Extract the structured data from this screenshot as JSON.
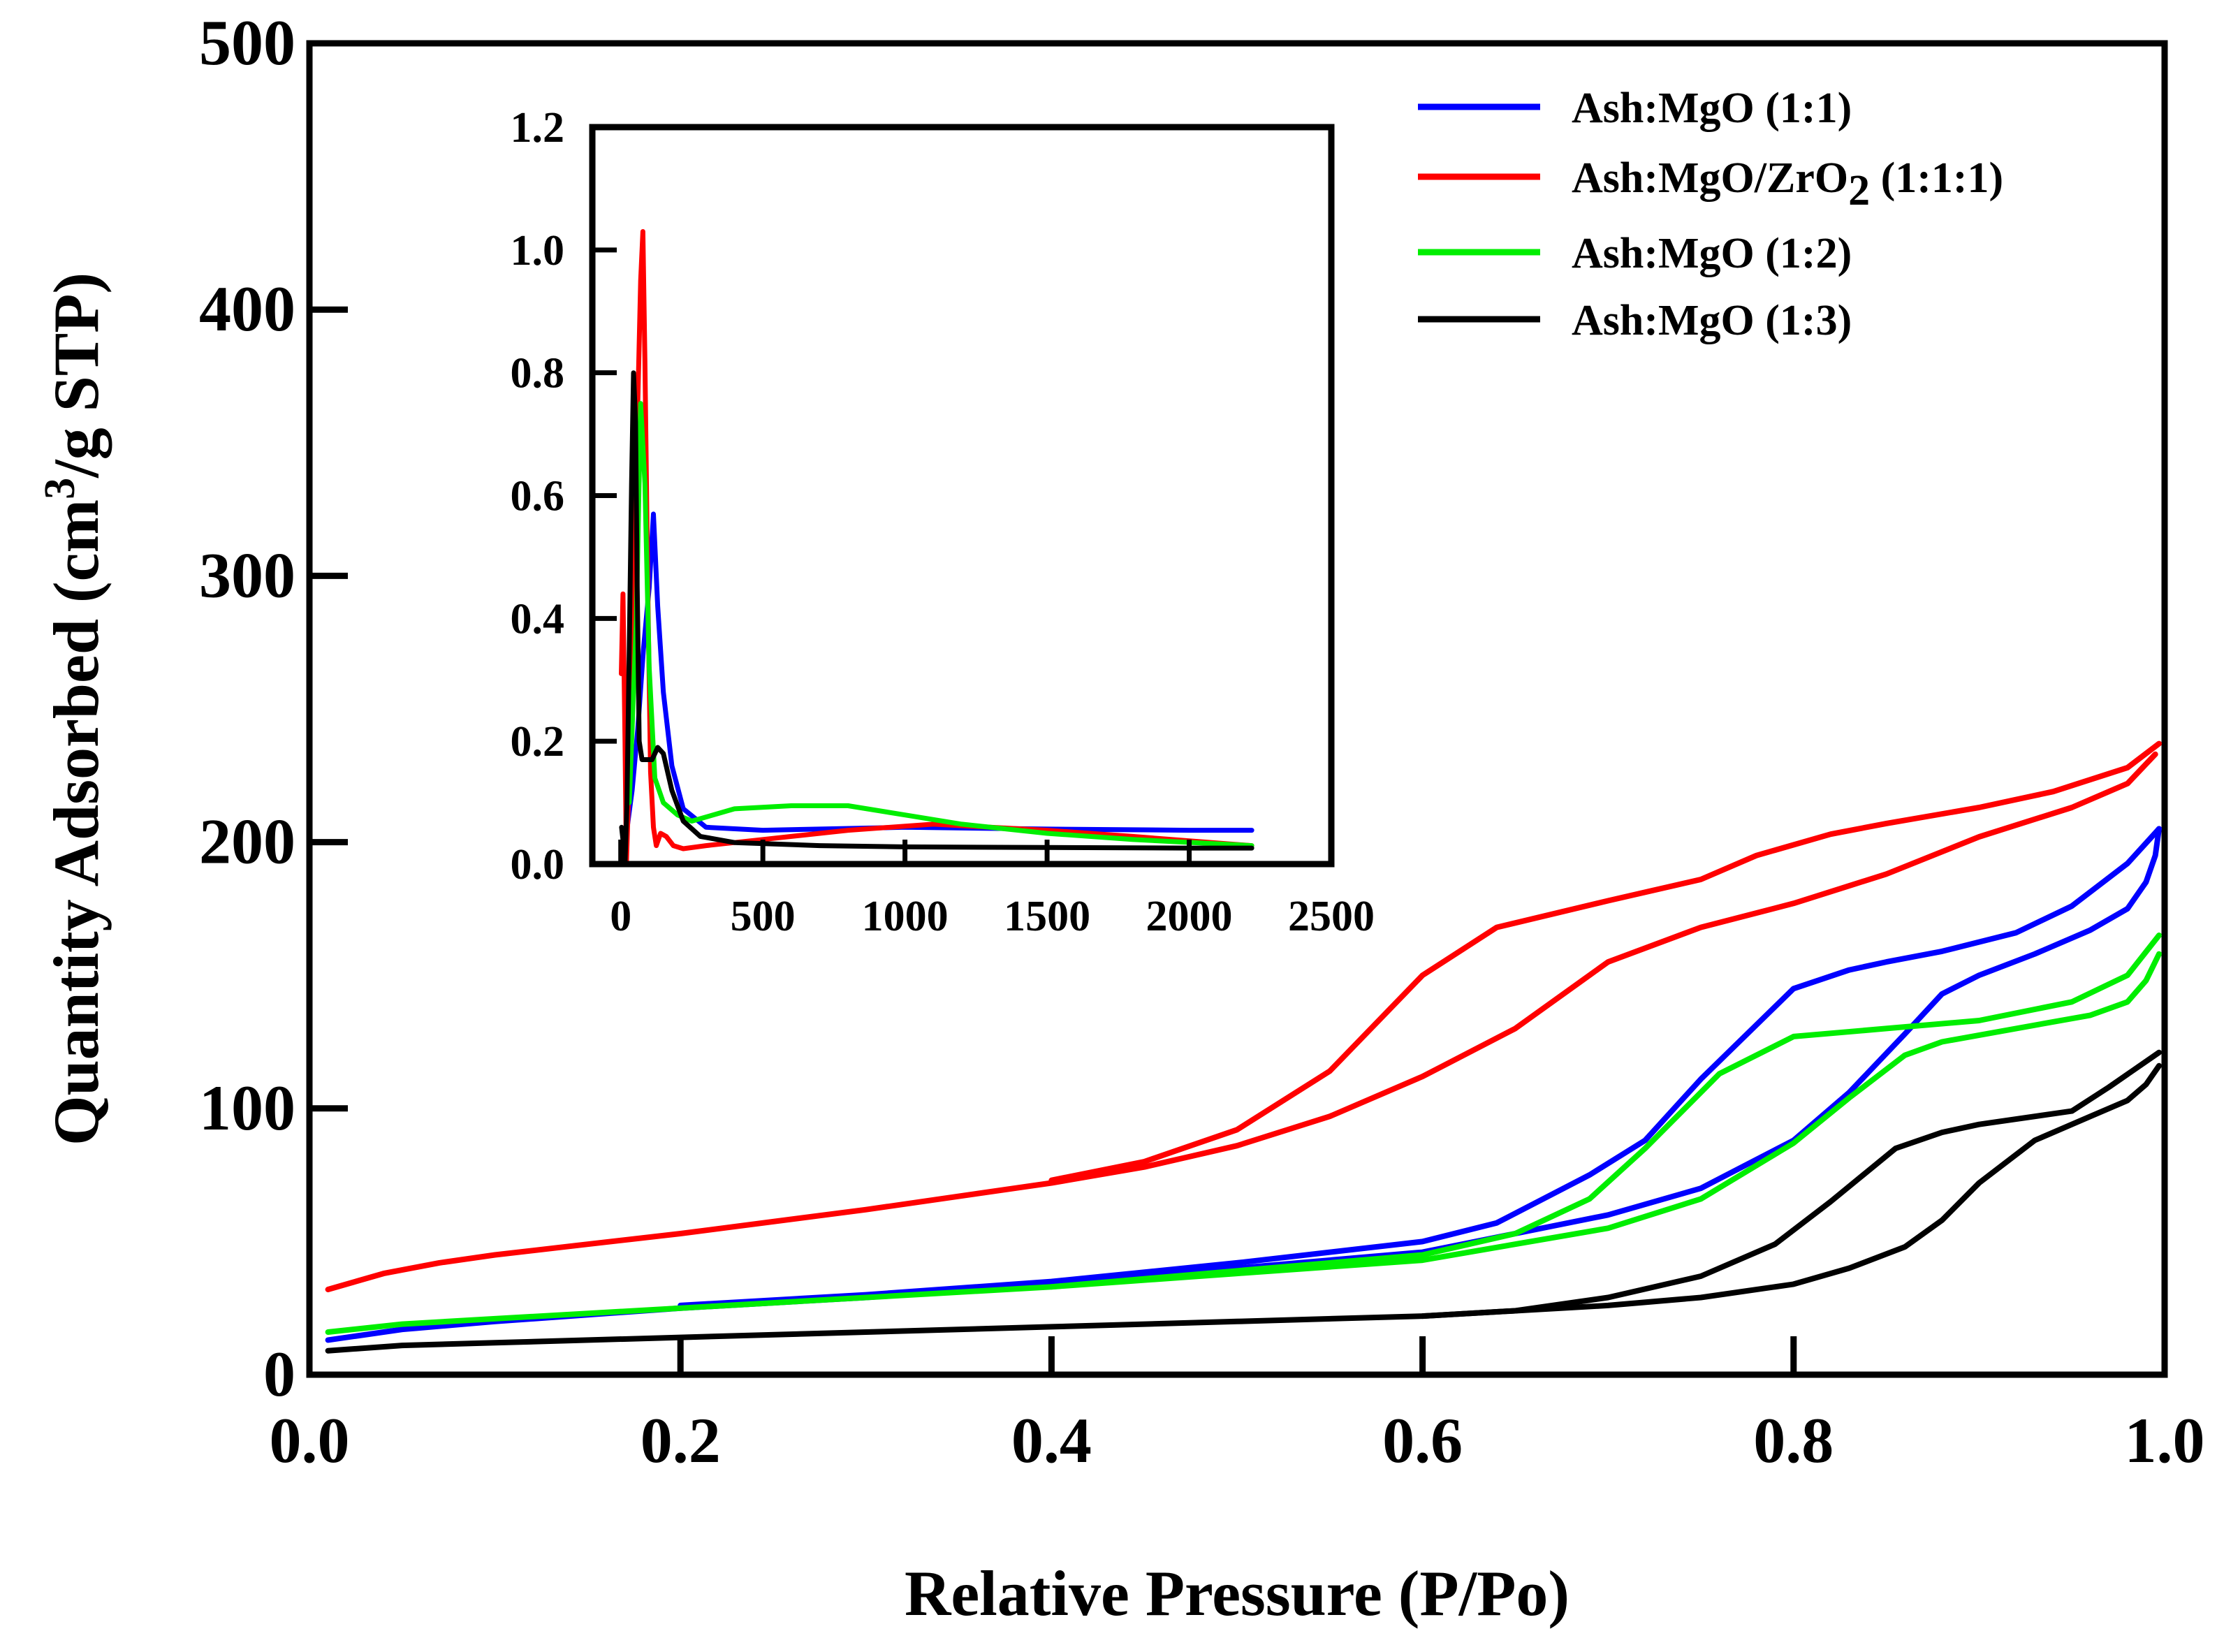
{
  "chart_data": [
    {
      "id": "main",
      "type": "line",
      "xlabel": "Relative Pressure (P/Po)",
      "ylabel": "Quantity Adsorbed (cm3/g STP)",
      "ylabel_parts": {
        "pre": "Quantity Adsorbed (cm",
        "sup": "3",
        "post": "/g STP)"
      },
      "xlim": [
        0,
        1.0
      ],
      "ylim": [
        0,
        500
      ],
      "xticks": [
        "0.0",
        "0.2",
        "0.4",
        "0.6",
        "0.8",
        "1.0"
      ],
      "xtick_values": [
        0,
        0.2,
        0.4,
        0.6,
        0.8,
        1.0
      ],
      "yticks": [
        "0",
        "100",
        "200",
        "300",
        "400",
        "500"
      ],
      "ytick_values": [
        0,
        100,
        200,
        300,
        400,
        500
      ],
      "legend_position": "top-right",
      "series": [
        {
          "name": "Ash:MgO (1:1)",
          "color": "#0000FF",
          "adsorption": [
            [
              0.01,
              13
            ],
            [
              0.05,
              17
            ],
            [
              0.1,
              20
            ],
            [
              0.2,
              25
            ],
            [
              0.3,
              29
            ],
            [
              0.4,
              34
            ],
            [
              0.5,
              40
            ],
            [
              0.6,
              46
            ],
            [
              0.7,
              60
            ],
            [
              0.75,
              70
            ],
            [
              0.8,
              88
            ],
            [
              0.83,
              106
            ],
            [
              0.86,
              128
            ],
            [
              0.88,
              143
            ],
            [
              0.9,
              150
            ],
            [
              0.93,
              158
            ],
            [
              0.96,
              167
            ],
            [
              0.98,
              175
            ],
            [
              0.99,
              185
            ],
            [
              0.995,
              195
            ],
            [
              0.997,
              205
            ]
          ],
          "desorption": [
            [
              0.997,
              205
            ],
            [
              0.98,
              192
            ],
            [
              0.95,
              176
            ],
            [
              0.92,
              166
            ],
            [
              0.88,
              159
            ],
            [
              0.85,
              155
            ],
            [
              0.83,
              152
            ],
            [
              0.8,
              145
            ],
            [
              0.75,
              111
            ],
            [
              0.72,
              88
            ],
            [
              0.69,
              75
            ],
            [
              0.64,
              57
            ],
            [
              0.6,
              50
            ],
            [
              0.5,
              42
            ],
            [
              0.4,
              35
            ],
            [
              0.3,
              30
            ],
            [
              0.2,
              26
            ]
          ]
        },
        {
          "name": "Ash:MgO/ZrO2 (1:1:1)",
          "label_parts": {
            "pre": "Ash:MgO/ZrO",
            "sub": "2",
            "post": " (1:1:1)"
          },
          "color": "#FF0000",
          "adsorption": [
            [
              0.01,
              32
            ],
            [
              0.04,
              38
            ],
            [
              0.07,
              42
            ],
            [
              0.1,
              45
            ],
            [
              0.15,
              49
            ],
            [
              0.2,
              53
            ],
            [
              0.3,
              62
            ],
            [
              0.4,
              72
            ],
            [
              0.45,
              78
            ],
            [
              0.5,
              86
            ],
            [
              0.55,
              97
            ],
            [
              0.6,
              112
            ],
            [
              0.65,
              130
            ],
            [
              0.7,
              155
            ],
            [
              0.75,
              168
            ],
            [
              0.8,
              177
            ],
            [
              0.85,
              188
            ],
            [
              0.9,
              202
            ],
            [
              0.95,
              213
            ],
            [
              0.98,
              222
            ],
            [
              0.995,
              233
            ]
          ],
          "desorption": [
            [
              0.997,
              237
            ],
            [
              0.98,
              228
            ],
            [
              0.94,
              219
            ],
            [
              0.9,
              213
            ],
            [
              0.85,
              207
            ],
            [
              0.82,
              203
            ],
            [
              0.78,
              195
            ],
            [
              0.75,
              186
            ],
            [
              0.7,
              178
            ],
            [
              0.64,
              168
            ],
            [
              0.6,
              150
            ],
            [
              0.55,
              114
            ],
            [
              0.5,
              92
            ],
            [
              0.45,
              80
            ],
            [
              0.4,
              73
            ]
          ]
        },
        {
          "name": "Ash:MgO (1:2)",
          "color": "#00EE00",
          "adsorption": [
            [
              0.01,
              16
            ],
            [
              0.05,
              19
            ],
            [
              0.1,
              21
            ],
            [
              0.2,
              25
            ],
            [
              0.3,
              29
            ],
            [
              0.4,
              33
            ],
            [
              0.5,
              38
            ],
            [
              0.6,
              43
            ],
            [
              0.7,
              55
            ],
            [
              0.75,
              66
            ],
            [
              0.8,
              87
            ],
            [
              0.83,
              104
            ],
            [
              0.86,
              120
            ],
            [
              0.88,
              125
            ],
            [
              0.92,
              130
            ],
            [
              0.96,
              135
            ],
            [
              0.98,
              140
            ],
            [
              0.99,
              148
            ],
            [
              0.997,
              158
            ]
          ],
          "desorption": [
            [
              0.997,
              165
            ],
            [
              0.98,
              150
            ],
            [
              0.95,
              140
            ],
            [
              0.9,
              133
            ],
            [
              0.85,
              130
            ],
            [
              0.8,
              127
            ],
            [
              0.76,
              113
            ],
            [
              0.72,
              85
            ],
            [
              0.69,
              66
            ],
            [
              0.65,
              53
            ],
            [
              0.6,
              45
            ],
            [
              0.5,
              39
            ],
            [
              0.4,
              33
            ]
          ]
        },
        {
          "name": "Ash:MgO (1:3)",
          "color": "#000000",
          "adsorption": [
            [
              0.01,
              9
            ],
            [
              0.05,
              11
            ],
            [
              0.1,
              12
            ],
            [
              0.2,
              14
            ],
            [
              0.3,
              16
            ],
            [
              0.4,
              18
            ],
            [
              0.5,
              20
            ],
            [
              0.6,
              22
            ],
            [
              0.7,
              26
            ],
            [
              0.75,
              29
            ],
            [
              0.8,
              34
            ],
            [
              0.83,
              40
            ],
            [
              0.86,
              48
            ],
            [
              0.88,
              58
            ],
            [
              0.9,
              72
            ],
            [
              0.93,
              88
            ],
            [
              0.96,
              97
            ],
            [
              0.98,
              103
            ],
            [
              0.99,
              109
            ],
            [
              0.997,
              116
            ]
          ],
          "desorption": [
            [
              0.997,
              121
            ],
            [
              0.97,
              108
            ],
            [
              0.95,
              99
            ],
            [
              0.9,
              94
            ],
            [
              0.88,
              91
            ],
            [
              0.855,
              85
            ],
            [
              0.82,
              65
            ],
            [
              0.79,
              49
            ],
            [
              0.75,
              37
            ],
            [
              0.7,
              29
            ],
            [
              0.65,
              24
            ],
            [
              0.6,
              22
            ]
          ]
        }
      ]
    },
    {
      "id": "inset",
      "type": "line",
      "xlim": [
        -100,
        2500
      ],
      "ylim": [
        0,
        1.2
      ],
      "xticks": [
        "0",
        "500",
        "1000",
        "1500",
        "2000",
        "2500"
      ],
      "xtick_values": [
        0,
        500,
        1000,
        1500,
        2000,
        2500
      ],
      "yticks": [
        "0.0",
        "0.2",
        "0.4",
        "0.6",
        "0.8",
        "1.0",
        "1.2"
      ],
      "ytick_values": [
        0,
        0.2,
        0.4,
        0.6,
        0.8,
        1.0,
        1.2
      ],
      "series": [
        {
          "name": "Ash:MgO (1:1)",
          "color": "#0000FF",
          "points": [
            [
              20,
              0.05
            ],
            [
              40,
              0.12
            ],
            [
              60,
              0.22
            ],
            [
              80,
              0.35
            ],
            [
              100,
              0.45
            ],
            [
              115,
              0.57
            ],
            [
              130,
              0.42
            ],
            [
              150,
              0.28
            ],
            [
              180,
              0.16
            ],
            [
              220,
              0.09
            ],
            [
              300,
              0.06
            ],
            [
              500,
              0.055
            ],
            [
              1000,
              0.06
            ],
            [
              1500,
              0.057
            ],
            [
              2000,
              0.055
            ],
            [
              2220,
              0.055
            ]
          ]
        },
        {
          "name": "Ash:MgO/ZrO2 (1:1:1)",
          "color": "#FF0000",
          "points": [
            [
              2,
              0.31
            ],
            [
              8,
              0.44
            ],
            [
              15,
              0.2
            ],
            [
              20,
              0.0
            ],
            [
              30,
              0.15
            ],
            [
              45,
              0.4
            ],
            [
              60,
              0.75
            ],
            [
              70,
              0.95
            ],
            [
              78,
              1.03
            ],
            [
              85,
              0.82
            ],
            [
              95,
              0.45
            ],
            [
              105,
              0.15
            ],
            [
              115,
              0.06
            ],
            [
              125,
              0.03
            ],
            [
              140,
              0.05
            ],
            [
              160,
              0.045
            ],
            [
              185,
              0.03
            ],
            [
              220,
              0.025
            ],
            [
              300,
              0.03
            ],
            [
              500,
              0.04
            ],
            [
              800,
              0.055
            ],
            [
              1100,
              0.065
            ],
            [
              1500,
              0.055
            ],
            [
              1800,
              0.045
            ],
            [
              2220,
              0.03
            ]
          ]
        },
        {
          "name": "Ash:MgO (1:2)",
          "color": "#00EE00",
          "points": [
            [
              30,
              0.1
            ],
            [
              55,
              0.4
            ],
            [
              70,
              0.75
            ],
            [
              85,
              0.62
            ],
            [
              100,
              0.32
            ],
            [
              120,
              0.14
            ],
            [
              150,
              0.1
            ],
            [
              200,
              0.08
            ],
            [
              250,
              0.07
            ],
            [
              400,
              0.09
            ],
            [
              600,
              0.095
            ],
            [
              800,
              0.095
            ],
            [
              1000,
              0.08
            ],
            [
              1200,
              0.065
            ],
            [
              1500,
              0.05
            ],
            [
              1800,
              0.04
            ],
            [
              2220,
              0.03
            ]
          ]
        },
        {
          "name": "Ash:MgO (1:3)",
          "color": "#000000",
          "points": [
            [
              3,
              0.06
            ],
            [
              10,
              0.03
            ],
            [
              15,
              0.0
            ],
            [
              22,
              0.1
            ],
            [
              30,
              0.35
            ],
            [
              38,
              0.62
            ],
            [
              45,
              0.8
            ],
            [
              52,
              0.72
            ],
            [
              58,
              0.45
            ],
            [
              65,
              0.2
            ],
            [
              75,
              0.17
            ],
            [
              90,
              0.17
            ],
            [
              110,
              0.17
            ],
            [
              130,
              0.19
            ],
            [
              150,
              0.18
            ],
            [
              180,
              0.12
            ],
            [
              220,
              0.07
            ],
            [
              280,
              0.045
            ],
            [
              400,
              0.035
            ],
            [
              700,
              0.03
            ],
            [
              1000,
              0.028
            ],
            [
              1500,
              0.027
            ],
            [
              2000,
              0.026
            ],
            [
              2220,
              0.026
            ]
          ]
        }
      ]
    }
  ]
}
